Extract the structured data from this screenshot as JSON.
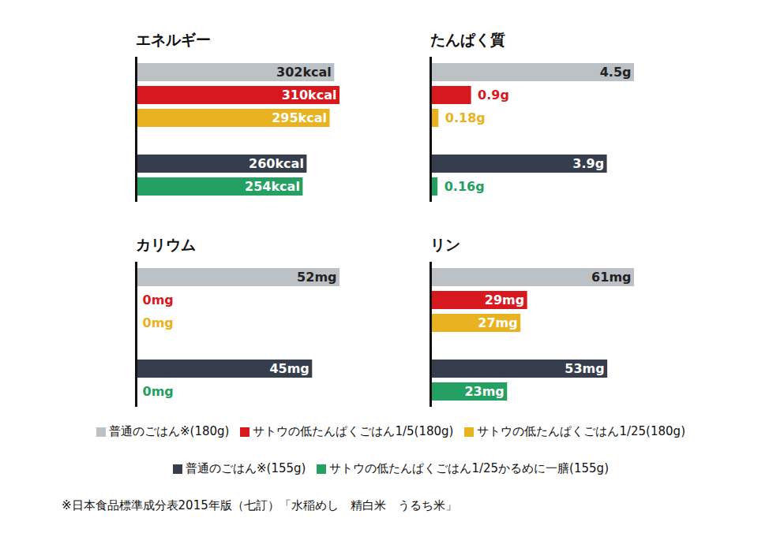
{
  "chart_data": [
    {
      "type": "bar",
      "title": "エネルギー",
      "orientation": "horizontal",
      "categories": [
        "普通のごはん※(180g)",
        "サトウの低たんぱくごはん1/5(180g)",
        "サトウの低たんぱくごはん1/25(180g)",
        "普通のごはん※(155g)",
        "サトウの低たんぱくごはん1/25かるめに一膳(155g)"
      ],
      "values": [
        302,
        310,
        295,
        260,
        254
      ],
      "value_labels": [
        "302kcal",
        "310kcal",
        "295kcal",
        "260kcal",
        "254kcal"
      ],
      "colors": [
        "#bcc1c6",
        "#d7191f",
        "#e8b220",
        "#363d4c",
        "#23a062"
      ],
      "xlim": [
        0,
        310
      ],
      "xticks": [],
      "tick_labels": false,
      "data_labels": true,
      "legend": "bottom"
    },
    {
      "type": "bar",
      "title": "たんぱく質",
      "orientation": "horizontal",
      "categories": [
        "普通のごはん※(180g)",
        "サトウの低たんぱくごはん1/5(180g)",
        "サトウの低たんぱくごはん1/25(180g)",
        "普通のごはん※(155g)",
        "サトウの低たんぱくごはん1/25かるめに一膳(155g)"
      ],
      "values": [
        4.5,
        0.9,
        0.18,
        3.9,
        0.16
      ],
      "value_labels": [
        "4.5g",
        "0.9g",
        "0.18g",
        "3.9g",
        "0.16g"
      ],
      "colors": [
        "#bcc1c6",
        "#d7191f",
        "#e8b220",
        "#363d4c",
        "#23a062"
      ],
      "xlim": [
        0,
        4.5
      ],
      "xticks": [],
      "tick_labels": false,
      "data_labels": true,
      "legend": "bottom"
    },
    {
      "type": "bar",
      "title": "カリウム",
      "orientation": "horizontal",
      "categories": [
        "普通のごはん※(180g)",
        "サトウの低たんぱくごはん1/5(180g)",
        "サトウの低たんぱくごはん1/25(180g)",
        "普通のごはん※(155g)",
        "サトウの低たんぱくごはん1/25かるめに一膳(155g)"
      ],
      "values": [
        52,
        0,
        0,
        45,
        0
      ],
      "value_labels": [
        "52mg",
        "0mg",
        "0mg",
        "45mg",
        "0mg"
      ],
      "colors": [
        "#bcc1c6",
        "#d7191f",
        "#e8b220",
        "#363d4c",
        "#23a062"
      ],
      "xlim": [
        0,
        52
      ],
      "xticks": [],
      "tick_labels": false,
      "data_labels": true,
      "legend": "bottom"
    },
    {
      "type": "bar",
      "title": "リン",
      "orientation": "horizontal",
      "categories": [
        "普通のごはん※(180g)",
        "サトウの低たんぱくごはん1/5(180g)",
        "サトウの低たんぱくごはん1/25(180g)",
        "普通のごはん※(155g)",
        "サトウの低たんぱくごはん1/25かるめに一膳(155g)"
      ],
      "values": [
        61,
        29,
        27,
        53,
        23
      ],
      "value_labels": [
        "61mg",
        "29mg",
        "27mg",
        "53mg",
        "23mg"
      ],
      "colors": [
        "#bcc1c6",
        "#d7191f",
        "#e8b220",
        "#363d4c",
        "#23a062"
      ],
      "xlim": [
        0,
        61
      ],
      "xticks": [],
      "tick_labels": false,
      "data_labels": true,
      "legend": "bottom"
    }
  ],
  "caption": "※日本食品標準成分表2015年版（七訂）「水稲めし　精白米　うるち米」"
}
